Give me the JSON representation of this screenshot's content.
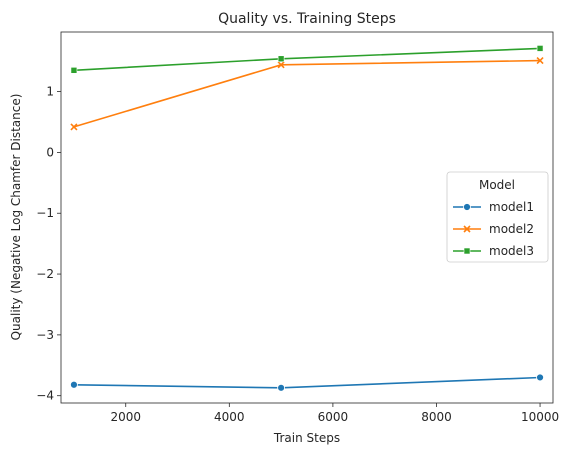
{
  "chart_data": {
    "type": "line",
    "title": "Quality vs. Training Steps",
    "xlabel": "Train Steps",
    "ylabel": "Quality (Negative Log Chamfer Distance)",
    "xlim": [
      750,
      10250
    ],
    "ylim": [
      -4.12,
      1.98
    ],
    "xticks": [
      2000,
      4000,
      6000,
      8000,
      10000
    ],
    "yticks": [
      -4,
      -3,
      -2,
      -1,
      0,
      1
    ],
    "grid": false,
    "legend": {
      "title": "Model",
      "placement": "center-right"
    },
    "x": [
      1000,
      5000,
      10000
    ],
    "series": [
      {
        "name": "model1",
        "values": [
          -3.82,
          -3.87,
          -3.7
        ],
        "color": "#1f77b4",
        "marker": "circle"
      },
      {
        "name": "model2",
        "values": [
          0.42,
          1.44,
          1.51
        ],
        "color": "#ff7f0e",
        "marker": "x"
      },
      {
        "name": "model3",
        "values": [
          1.35,
          1.54,
          1.71
        ],
        "color": "#2ca02c",
        "marker": "square"
      }
    ]
  }
}
